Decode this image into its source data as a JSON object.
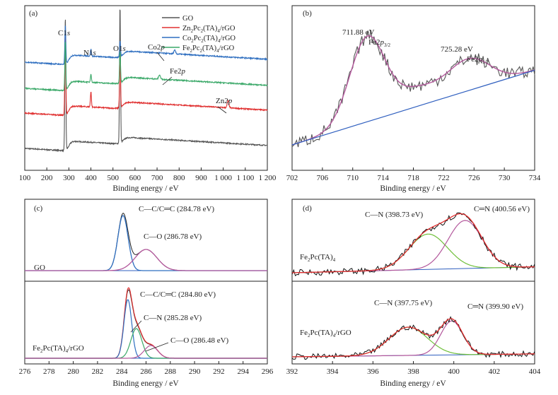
{
  "chart_data": [
    {
      "type": "line",
      "panel_label": "(a)",
      "xlabel": "Binding energy / eV",
      "ylabel": "",
      "xlim": [
        100,
        1200
      ],
      "x_ticks": [
        "100",
        "200",
        "300",
        "400",
        "500",
        "600",
        "700",
        "800",
        "900",
        "1 000",
        "1 100",
        "1 200"
      ],
      "legend_position": "top-right",
      "legend": [
        {
          "label": "GO",
          "color": "#555555"
        },
        {
          "label": "Zn2Pc2(TA)4/rGO",
          "color": "#e03030"
        },
        {
          "label": "Co2Pc2(TA)4/rGO",
          "color": "#2f6fc0"
        },
        {
          "label": "Fe2Pc2(TA)4/rGO",
          "color": "#3aa868"
        }
      ],
      "annotations": [
        "C1s",
        "N1s",
        "O1s",
        "Co2p",
        "Fe2p",
        "Zn2p"
      ],
      "series": [
        {
          "name": "GO",
          "color": "#555555",
          "peaks_eV": [
            284,
            532
          ]
        },
        {
          "name": "Zn2Pc2(TA)4/rGO",
          "color": "#e03030",
          "peaks_eV": [
            284,
            400,
            532,
            1022
          ]
        },
        {
          "name": "Co2Pc2(TA)4/rGO",
          "color": "#2f6fc0",
          "peaks_eV": [
            284,
            400,
            532,
            780
          ]
        },
        {
          "name": "Fe2Pc2(TA)4/rGO",
          "color": "#3aa868",
          "peaks_eV": [
            284,
            400,
            532,
            711
          ]
        }
      ]
    },
    {
      "type": "line",
      "panel_label": "(b)",
      "xlabel": "Binding energy / eV",
      "ylabel": "",
      "xlim": [
        702,
        734
      ],
      "x_ticks": [
        "702",
        "706",
        "710",
        "714",
        "718",
        "722",
        "726",
        "730",
        "734"
      ],
      "annotations": [
        {
          "value": "711.88 eV",
          "label": "Fe2p3/2"
        },
        {
          "value": "725.28 eV",
          "label": "Fe2p1/2"
        }
      ],
      "series": [
        {
          "name": "raw",
          "color": "#555555"
        },
        {
          "name": "fit",
          "color": "#b3589c",
          "peaks_eV": [
            711.88,
            725.28
          ]
        },
        {
          "name": "background",
          "color": "#2f5fbf"
        }
      ]
    },
    {
      "type": "line",
      "panel_label": "(c)",
      "xlabel": "Binding energy / eV",
      "ylabel": "",
      "xlim": [
        276,
        296
      ],
      "x_ticks": [
        "276",
        "278",
        "280",
        "282",
        "284",
        "286",
        "288",
        "290",
        "292",
        "294",
        "296"
      ],
      "subpanels": [
        {
          "sample": "GO",
          "annotations": [
            "C—C/C═C (284.78 eV)",
            "C—O (286.78 eV)"
          ],
          "components_eV": [
            284.78,
            286.78
          ]
        },
        {
          "sample": "Fe2Pc(TA)4/rGO",
          "annotations": [
            "C—C/C═C (284.80 eV)",
            "C—N (285.28 eV)",
            "C—O (286.48 eV)"
          ],
          "components_eV": [
            284.8,
            285.28,
            286.48
          ]
        }
      ]
    },
    {
      "type": "line",
      "panel_label": "(d)",
      "xlabel": "Binding energy / eV",
      "ylabel": "",
      "xlim": [
        392,
        404
      ],
      "x_ticks": [
        "392",
        "394",
        "396",
        "398",
        "400",
        "402",
        "404"
      ],
      "subpanels": [
        {
          "sample": "Fe2Pc(TA)4",
          "annotations": [
            "C—N (398.73 eV)",
            "C═N (400.56 eV)"
          ],
          "components_eV": [
            398.73,
            400.56
          ]
        },
        {
          "sample": "Fe2Pc(TA)4/rGO",
          "annotations": [
            "C—N (397.75 eV)",
            "C═N (399.90 eV)"
          ],
          "components_eV": [
            397.75,
            399.9
          ]
        }
      ]
    }
  ]
}
